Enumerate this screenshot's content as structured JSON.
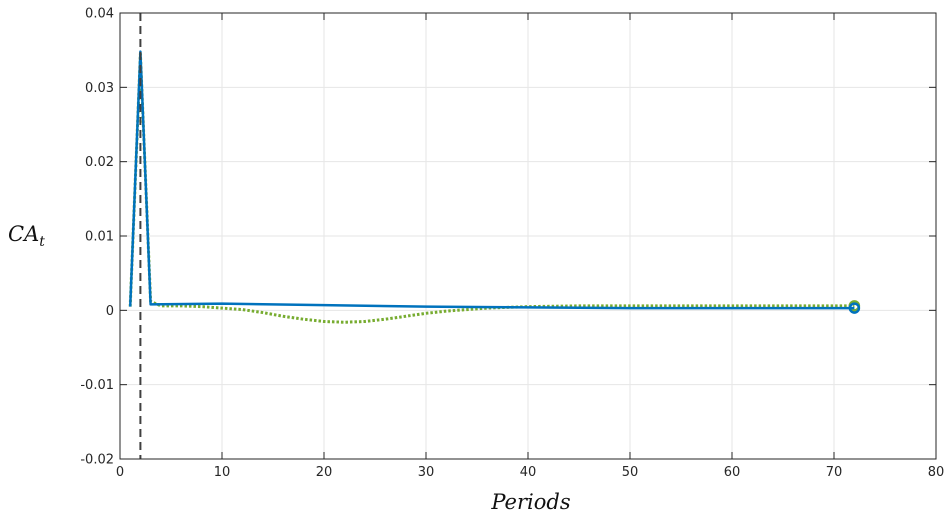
{
  "chart_data": {
    "type": "line",
    "title": "",
    "xlabel": "Periods",
    "ylabel": "CA",
    "ylabel_subscript": "t",
    "xlim": [
      0,
      80
    ],
    "ylim": [
      -0.02,
      0.04
    ],
    "xticks": [
      0,
      10,
      20,
      30,
      40,
      50,
      60,
      70,
      80
    ],
    "yticks": [
      -0.02,
      -0.01,
      0,
      0.01,
      0.02,
      0.03,
      0.04
    ],
    "xtick_labels": [
      "0",
      "10",
      "20",
      "30",
      "40",
      "50",
      "60",
      "70",
      "80"
    ],
    "ytick_labels": [
      "-0.02",
      "-0.01",
      "0",
      "0.01",
      "0.02",
      "0.03",
      "0.04"
    ],
    "grid": true,
    "vertical_marker": {
      "x": 2,
      "style": "dashed",
      "color": "#404040"
    },
    "series": [
      {
        "style": "dotted",
        "color": "#77AC30",
        "x": [
          1,
          2,
          3,
          4,
          6,
          8,
          10,
          12,
          14,
          16,
          18,
          20,
          22,
          24,
          26,
          28,
          30,
          32,
          34,
          36,
          38,
          40,
          45,
          50,
          55,
          60,
          65,
          70,
          72
        ],
        "y": [
          0.0005,
          0.0345,
          0.0012,
          0.0006,
          0.0006,
          0.0005,
          0.0003,
          0.0001,
          -0.0003,
          -0.0008,
          -0.0012,
          -0.0015,
          -0.0016,
          -0.0015,
          -0.0012,
          -0.0008,
          -0.0004,
          -0.0001,
          0.0001,
          0.0003,
          0.0004,
          0.0005,
          0.0006,
          0.0006,
          0.0006,
          0.0006,
          0.0006,
          0.0006,
          0.0006
        ],
        "end_marker": "circle"
      },
      {
        "style": "solid",
        "color": "#0072BD",
        "x": [
          1,
          2,
          3,
          10,
          20,
          30,
          40,
          50,
          60,
          70,
          72
        ],
        "y": [
          0.0005,
          0.0348,
          0.0008,
          0.0009,
          0.0007,
          0.0005,
          0.0004,
          0.0003,
          0.0003,
          0.0003,
          0.0003
        ],
        "end_marker": "circle"
      }
    ]
  }
}
